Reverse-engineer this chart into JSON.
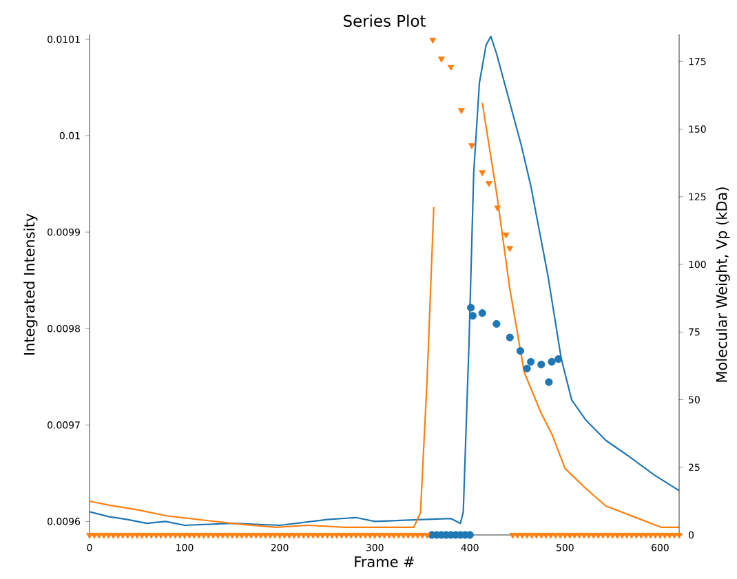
{
  "chart_data": {
    "type": "line",
    "title": "Series Plot",
    "xlabel": "Frame #",
    "ylabel": "Integrated Intensity",
    "y2label": "Molecular Weight, Vp (kDa)",
    "xlim": [
      0,
      620
    ],
    "ylim": [
      0.009586,
      0.010105
    ],
    "y2lim": [
      0,
      185
    ],
    "xticks": [
      0,
      100,
      200,
      300,
      400,
      500,
      600
    ],
    "yticks": [
      0.0096,
      0.0097,
      0.0098,
      0.0099,
      0.01,
      0.0101
    ],
    "y2ticks": [
      0,
      25,
      50,
      75,
      100,
      125,
      150,
      175
    ],
    "series": [
      {
        "axis": "y",
        "color": "#1f77b4",
        "x": [
          0,
          20,
          40,
          60,
          80,
          100,
          150,
          200,
          250,
          280,
          300,
          350,
          380,
          390,
          393,
          399,
          404,
          410,
          417,
          422,
          428,
          442,
          454,
          464,
          482,
          496,
          507,
          522,
          543,
          565,
          594,
          620
        ],
        "values": [
          0.00961,
          0.009605,
          0.009602,
          0.009598,
          0.0096,
          0.009596,
          0.009598,
          0.009596,
          0.009602,
          0.009604,
          0.0096,
          0.009602,
          0.009603,
          0.009598,
          0.00961,
          0.009784,
          0.009962,
          0.010055,
          0.010094,
          0.010103,
          0.010085,
          0.010034,
          0.00999,
          0.009948,
          0.009855,
          0.009769,
          0.009726,
          0.009705,
          0.009684,
          0.009669,
          0.009648,
          0.009632
        ]
      },
      {
        "axis": "y",
        "color": "#ff7f0e",
        "x": [
          0,
          20,
          51,
          80,
          123,
          160,
          196,
          230,
          268,
          300,
          341,
          348,
          355,
          362,
          372,
          385,
          401,
          413,
          428,
          442,
          457,
          475,
          486,
          500,
          522,
          543,
          572,
          601,
          620
        ],
        "values": [
          0.009621,
          0.009617,
          0.009612,
          0.009606,
          0.009601,
          0.009597,
          0.009594,
          0.009596,
          0.009594,
          0.009594,
          0.009594,
          0.009609,
          0.009748,
          0.009926,
          null,
          null,
          null,
          0.010034,
          0.009941,
          0.009841,
          0.009755,
          0.009712,
          0.009691,
          0.009655,
          0.009634,
          0.009616,
          0.009605,
          0.009594,
          0.009594
        ]
      },
      {
        "type": "scatter",
        "axis": "y2",
        "marker": "circle",
        "color": "#1f77b4",
        "x": [
          360,
          365,
          370,
          375,
          380,
          385,
          390,
          395,
          400,
          401,
          403,
          413,
          428,
          442,
          453,
          460,
          464,
          475,
          483,
          486,
          493
        ],
        "values": [
          0,
          0,
          0,
          0,
          0,
          0,
          0,
          0,
          0,
          84,
          81,
          82,
          78,
          73,
          68,
          61.5,
          64,
          63,
          56.5,
          64,
          65
        ]
      },
      {
        "type": "scatter",
        "axis": "y2",
        "marker": "triangle",
        "color": "#ff7f0e",
        "x": [
          0,
          5,
          10,
          15,
          20,
          25,
          30,
          35,
          40,
          45,
          50,
          55,
          60,
          65,
          70,
          75,
          80,
          85,
          90,
          95,
          100,
          105,
          110,
          115,
          120,
          125,
          130,
          135,
          140,
          145,
          150,
          155,
          160,
          165,
          170,
          175,
          180,
          185,
          190,
          195,
          200,
          205,
          210,
          215,
          220,
          225,
          230,
          235,
          240,
          245,
          250,
          255,
          260,
          265,
          270,
          275,
          280,
          285,
          290,
          295,
          300,
          305,
          310,
          315,
          320,
          325,
          330,
          335,
          340,
          345,
          350,
          355,
          361,
          370,
          380,
          391,
          402,
          413,
          420,
          429,
          438,
          442,
          445,
          450,
          455,
          460,
          465,
          470,
          475,
          480,
          485,
          490,
          495,
          500,
          505,
          510,
          515,
          520,
          525,
          530,
          535,
          540,
          545,
          550,
          555,
          560,
          565,
          570,
          575,
          580,
          585,
          590,
          595,
          600,
          605,
          610,
          615,
          620
        ],
        "values": [
          0,
          0,
          0,
          0,
          0,
          0,
          0,
          0,
          0,
          0,
          0,
          0,
          0,
          0,
          0,
          0,
          0,
          0,
          0,
          0,
          0,
          0,
          0,
          0,
          0,
          0,
          0,
          0,
          0,
          0,
          0,
          0,
          0,
          0,
          0,
          0,
          0,
          0,
          0,
          0,
          0,
          0,
          0,
          0,
          0,
          0,
          0,
          0,
          0,
          0,
          0,
          0,
          0,
          0,
          0,
          0,
          0,
          0,
          0,
          0,
          0,
          0,
          0,
          0,
          0,
          0,
          0,
          0,
          0,
          0,
          0,
          0,
          183,
          176,
          173,
          157,
          144,
          134,
          130,
          121,
          111,
          106,
          0,
          0,
          0,
          0,
          0,
          0,
          0,
          0,
          0,
          0,
          0,
          0,
          0,
          0,
          0,
          0,
          0,
          0,
          0,
          0,
          0,
          0,
          0,
          0,
          0,
          0,
          0,
          0,
          0,
          0,
          0,
          0,
          0,
          0,
          0,
          0
        ]
      }
    ]
  }
}
